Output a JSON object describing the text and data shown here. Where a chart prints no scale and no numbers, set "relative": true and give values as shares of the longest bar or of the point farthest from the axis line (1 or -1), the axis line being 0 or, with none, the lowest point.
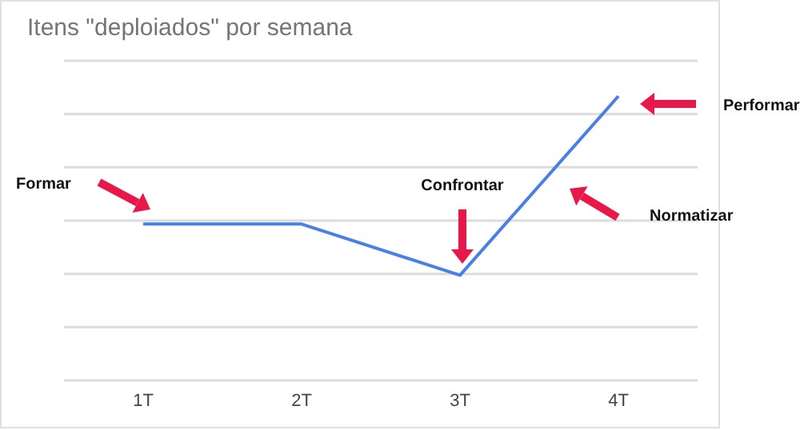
{
  "chart_data": {
    "type": "line",
    "title": "Itens \"deploiados\" por semana",
    "categories": [
      "1T",
      "2T",
      "3T",
      "4T"
    ],
    "series": [
      {
        "color": "#4a7fe8",
        "values": [
          0.55,
          0.55,
          0.37,
          1
        ]
      }
    ],
    "relative": true,
    "grid": "y",
    "marker": "none",
    "legend": false,
    "annotations": [
      "Formar",
      "Confrontar",
      "Normatizar",
      "Performar"
    ]
  }
}
